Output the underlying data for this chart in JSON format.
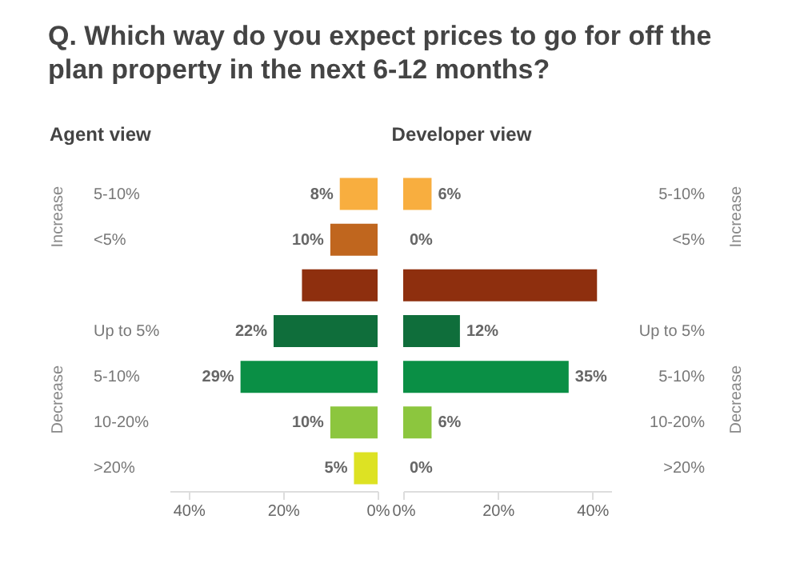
{
  "chart_data": [
    {
      "type": "bar",
      "orientation": "horizontal",
      "title": "Q. Which way do you expect prices to go for off the plan property in the next 6-12 months?",
      "subtitle": "Agent view",
      "categories": [
        "5-10%",
        "<5%",
        null,
        "Up to 5%",
        "5-10%",
        "10-20%",
        ">20%"
      ],
      "values": [
        8,
        10,
        16,
        22,
        29,
        10,
        5
      ],
      "value_labels": [
        "8%",
        "10%",
        null,
        "22%",
        "29%",
        "10%",
        "5%"
      ],
      "colors": [
        "#f8ae3f",
        "#c0661e",
        "#8e2f0e",
        "#0f6e3b",
        "#0a8f45",
        "#8cc63e",
        "#dde223"
      ],
      "xlim": [
        44,
        0
      ],
      "xticks": [
        {
          "value": 40,
          "label": "40%"
        },
        {
          "value": 20,
          "label": "20%"
        },
        {
          "value": 0,
          "label": "0%"
        }
      ],
      "annotations": [
        "Increase",
        "Decrease"
      ]
    },
    {
      "type": "bar",
      "orientation": "horizontal",
      "subtitle": "Developer view",
      "categories": [
        "5-10%",
        "<5%",
        null,
        "Up to 5%",
        "5-10%",
        "10-20%",
        ">20%"
      ],
      "values": [
        6,
        0,
        41,
        12,
        35,
        6,
        0
      ],
      "value_labels": [
        "6%",
        "0%",
        null,
        "12%",
        "35%",
        "6%",
        "0%"
      ],
      "colors": [
        "#f8ae3f",
        "#c0661e",
        "#8e2f0e",
        "#0f6e3b",
        "#0a8f45",
        "#8cc63e",
        "#dde223"
      ],
      "xlim": [
        0,
        44
      ],
      "xticks": [
        {
          "value": 0,
          "label": "0%"
        },
        {
          "value": 20,
          "label": "20%"
        },
        {
          "value": 40,
          "label": "40%"
        }
      ],
      "annotations": [
        "Increase",
        "Decrease"
      ]
    }
  ]
}
